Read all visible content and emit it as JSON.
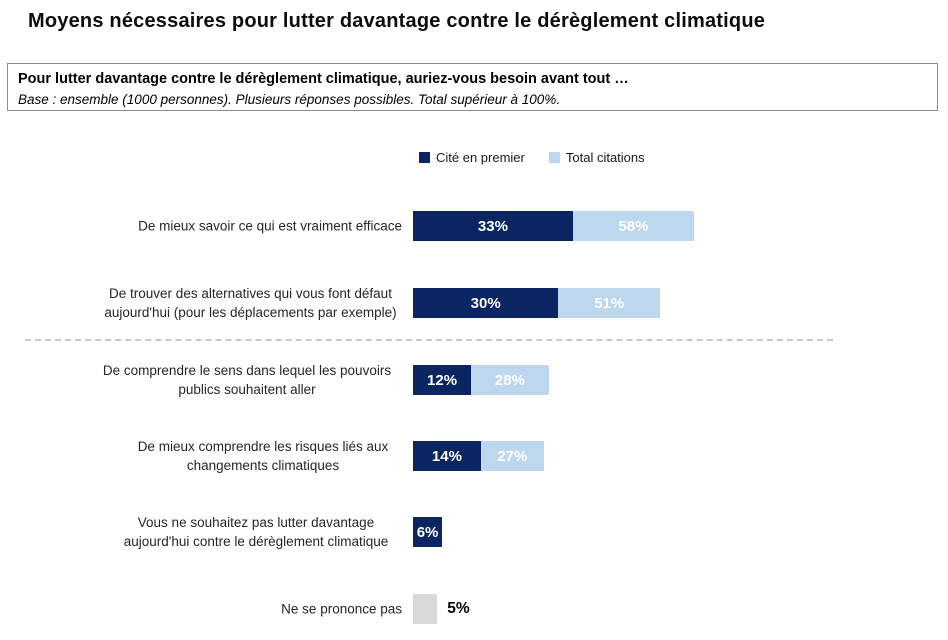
{
  "page": {
    "title": "Moyens nécessaires pour lutter davantage contre le dérèglement climatique"
  },
  "question_box": {
    "question": "Pour lutter davantage contre le dérèglement climatique, auriez-vous besoin avant tout …",
    "base": "Base : ensemble (1000 personnes). Plusieurs réponses possibles. Total supérieur à 100%."
  },
  "legend": {
    "items": [
      {
        "label": "Cité en premier",
        "color": "#0b2562"
      },
      {
        "label": "Total citations",
        "color": "#bdd7ee"
      }
    ]
  },
  "chart_data": {
    "type": "bar",
    "orientation": "horizontal",
    "title": "Moyens nécessaires pour lutter davantage contre le dérèglement climatique",
    "unit": "%",
    "grid": false,
    "legend_position": "top-center",
    "xlim": [
      0,
      60
    ],
    "value_labels": "inside segments, white bold; gray row labelled outside in black",
    "categories": [
      "De mieux savoir ce qui est vraiment efficace",
      "De trouver des alternatives qui vous font défaut aujourd'hui (pour les déplacements par exemple)",
      "De comprendre le sens dans lequel les pouvoirs publics souhaitent aller",
      "De mieux comprendre les risques liés aux changements climatiques",
      "Vous ne souhaitez pas lutter davantage aujourd'hui contre le dérèglement climatique",
      "Ne se prononce pas"
    ],
    "series": [
      {
        "name": "Cité en premier",
        "color": "#0b2562",
        "values": [
          33,
          30,
          12,
          14,
          6,
          null
        ]
      },
      {
        "name": "Total citations",
        "color": "#bdd7ee",
        "values": [
          58,
          51,
          28,
          27,
          null,
          5
        ]
      }
    ],
    "nsp_color": "#d9d9d9",
    "separator_after_index": 1
  }
}
